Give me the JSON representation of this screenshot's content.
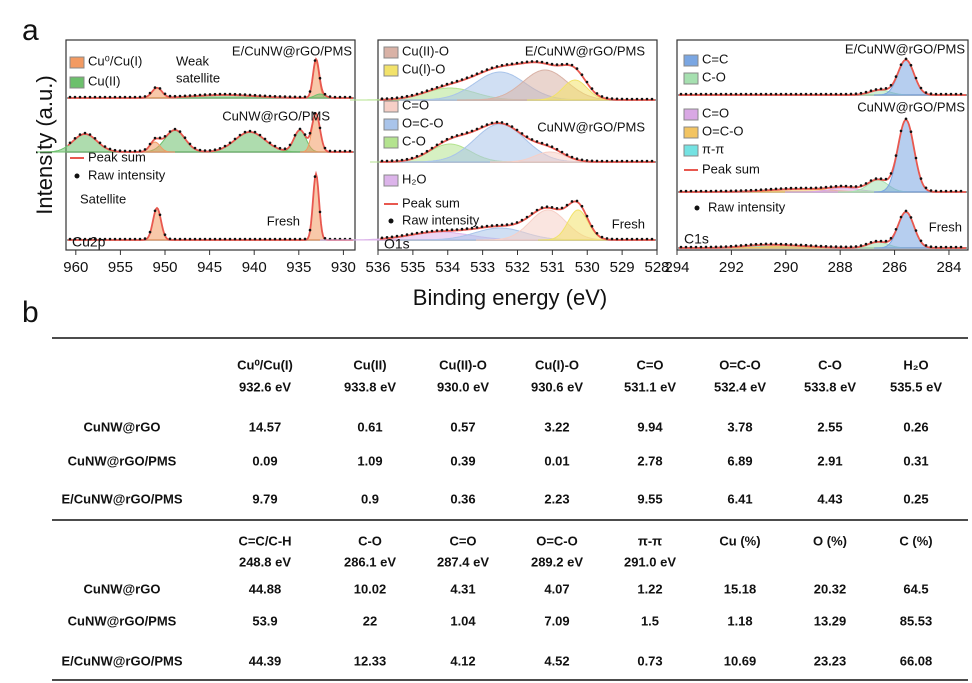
{
  "panel_a": {
    "label": "a",
    "y_label": "Intensity (a.u.)",
    "x_label": "Binding energy (eV)",
    "charts": [
      {
        "type": "line",
        "region": "Cu2p",
        "xlim": [
          961.1,
          928.7
        ],
        "xticks": [
          960,
          955,
          950,
          945,
          940,
          935,
          930
        ],
        "samples": [
          "E/CuNW@rGO/PMS",
          "CuNW@rGO/PMS",
          "Fresh"
        ],
        "legend": [
          {
            "name": "Cu⁰/Cu(I)",
            "color": "#f29a62"
          },
          {
            "name": "Cu(II)",
            "color": "#6cc06c"
          }
        ],
        "sum_label": "Peak sum",
        "raw_label": "Raw intensity",
        "sum_color": "#e8584f",
        "weak_satellite": [
          "Weak",
          "satellite"
        ],
        "satellite": "Satellite"
      },
      {
        "type": "line",
        "region": "O1s",
        "xlim": [
          536,
          528
        ],
        "xticks": [
          536,
          535,
          534,
          533,
          532,
          531,
          530,
          529,
          528
        ],
        "samples": [
          "E/CuNW@rGO/PMS",
          "CuNW@rGO/PMS",
          "Fresh"
        ],
        "legend": [
          {
            "name": "Cu(II)-O",
            "color": "#d9b2a6"
          },
          {
            "name": "Cu(I)-O",
            "color": "#f2e26a"
          },
          {
            "name": "C=O",
            "color": "#f6cfc6"
          },
          {
            "name": "O=C-O",
            "color": "#a9c4ea"
          },
          {
            "name": "C-O",
            "color": "#b4e38f"
          },
          {
            "name": "H₂O",
            "color": "#dcb4ea"
          }
        ],
        "sum_label": "Peak sum",
        "raw_label": "Raw intensity",
        "sum_color": "#e8584f"
      },
      {
        "type": "line",
        "region": "C1s",
        "xlim": [
          294,
          283.3
        ],
        "xticks": [
          294,
          292,
          290,
          288,
          286,
          284
        ],
        "samples": [
          "E/CuNW@rGO/PMS",
          "CuNW@rGO/PMS",
          "Fresh"
        ],
        "legend": [
          {
            "name": "C=C",
            "color": "#7aa6e2"
          },
          {
            "name": "C-O",
            "color": "#a6e0b0"
          },
          {
            "name": "C=O",
            "color": "#d9a8e4"
          },
          {
            "name": "O=C-O",
            "color": "#f2c462"
          },
          {
            "name": "π-π",
            "color": "#74e2e2"
          }
        ],
        "sum_label": "Peak sum",
        "raw_label": "Raw intensity",
        "sum_color": "#e8584f"
      }
    ]
  },
  "panel_b": {
    "label": "b",
    "blocks": [
      {
        "columns": [
          {
            "name": "Cu⁰/Cu(I)",
            "energy": "932.6 eV"
          },
          {
            "name": "Cu(II)",
            "energy": "933.8 eV"
          },
          {
            "name": "Cu(II)-O",
            "energy": "930.0 eV"
          },
          {
            "name": "Cu(I)-O",
            "energy": "930.6 eV"
          },
          {
            "name": "C=O",
            "energy": "531.1 eV"
          },
          {
            "name": "O=C-O",
            "energy": "532.4 eV"
          },
          {
            "name": "C-O",
            "energy": "533.8 eV"
          },
          {
            "name": "H₂O",
            "energy": "535.5 eV"
          }
        ],
        "rows": [
          {
            "sample": "CuNW@rGO",
            "values": [
              14.57,
              0.61,
              0.57,
              3.22,
              9.94,
              3.78,
              2.55,
              0.26
            ]
          },
          {
            "sample": "CuNW@rGO/PMS",
            "values": [
              0.09,
              1.09,
              0.39,
              0.01,
              2.78,
              6.89,
              2.91,
              0.31
            ]
          },
          {
            "sample": "E/CuNW@rGO/PMS",
            "values": [
              9.79,
              0.9,
              0.36,
              2.23,
              9.55,
              6.41,
              4.43,
              0.25
            ]
          }
        ]
      },
      {
        "columns": [
          {
            "name": "C=C/C-H",
            "energy": "248.8 eV"
          },
          {
            "name": "C-O",
            "energy": "286.1 eV"
          },
          {
            "name": "C=O",
            "energy": "287.4 eV"
          },
          {
            "name": "O=C-O",
            "energy": "289.2 eV"
          },
          {
            "name": "π-π",
            "energy": "291.0 eV"
          },
          {
            "name": "Cu (%)"
          },
          {
            "name": "O (%)"
          },
          {
            "name": "C (%)"
          }
        ],
        "rows": [
          {
            "sample": "CuNW@rGO",
            "values": [
              44.88,
              10.02,
              4.31,
              4.07,
              1.22,
              15.18,
              20.32,
              64.5
            ]
          },
          {
            "sample": "CuNW@rGO/PMS",
            "values": [
              53.9,
              22,
              1.04,
              7.09,
              1.5,
              1.18,
              13.29,
              85.53
            ]
          },
          {
            "sample": "E/CuNW@rGO/PMS",
            "values": [
              44.39,
              12.33,
              4.12,
              4.52,
              0.73,
              10.69,
              23.23,
              66.08
            ]
          }
        ]
      }
    ]
  }
}
